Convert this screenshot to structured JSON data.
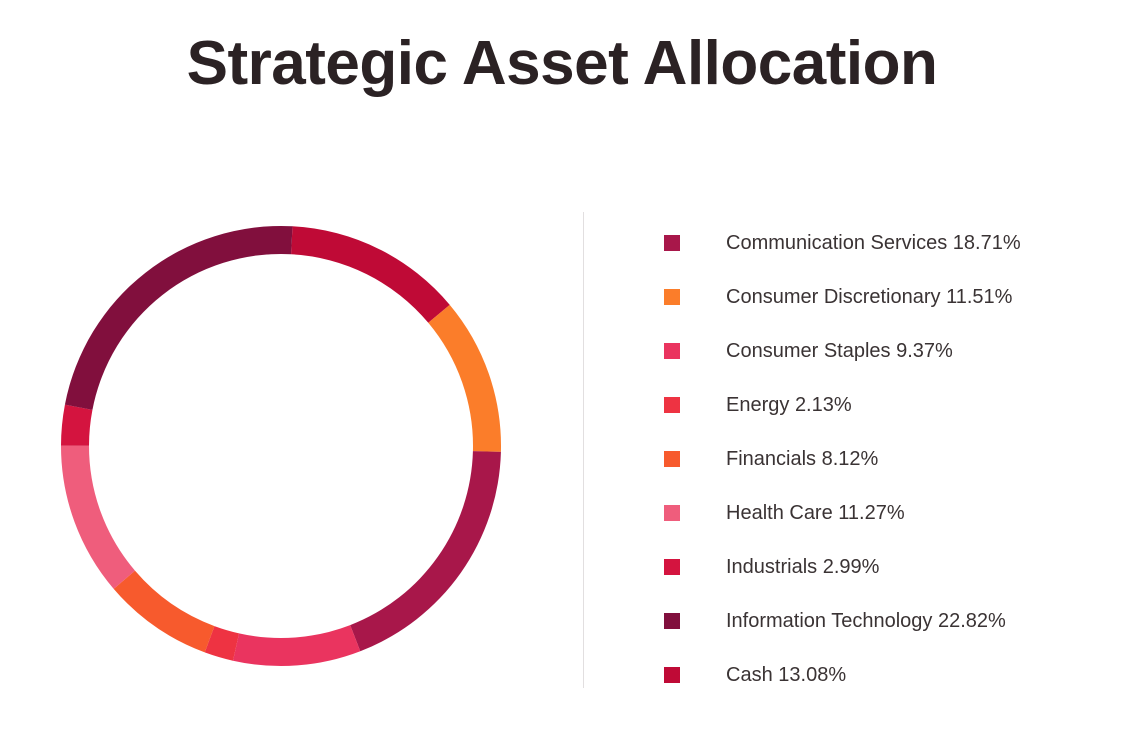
{
  "chart_data": {
    "type": "pie",
    "title": "Strategic Asset Allocation",
    "donut": true,
    "legend": "right",
    "slices": [
      {
        "label": "Communication Services",
        "value": 18.71,
        "display": "18.71%",
        "color": "#a8174a"
      },
      {
        "label": "Consumer Discretionary",
        "value": 11.51,
        "display": "11.51%",
        "color": "#fb7d2a"
      },
      {
        "label": "Consumer Staples",
        "value": 9.37,
        "display": "9.37%",
        "color": "#ea345f"
      },
      {
        "label": "Energy",
        "value": 2.13,
        "display": "2.13%",
        "color": "#ee3342"
      },
      {
        "label": "Financials",
        "value": 8.12,
        "display": "8.12%",
        "color": "#f75a2d"
      },
      {
        "label": "Health Care",
        "value": 11.27,
        "display": "11.27%",
        "color": "#ef5d7c"
      },
      {
        "label": "Industrials",
        "value": 2.99,
        "display": "2.99%",
        "color": "#d4143f"
      },
      {
        "label": "Information Technology",
        "value": 22.82,
        "display": "22.82%",
        "color": "#810f3d"
      },
      {
        "label": "Cash",
        "value": 13.08,
        "display": "13.08%",
        "color": "#bf0a36"
      }
    ]
  }
}
